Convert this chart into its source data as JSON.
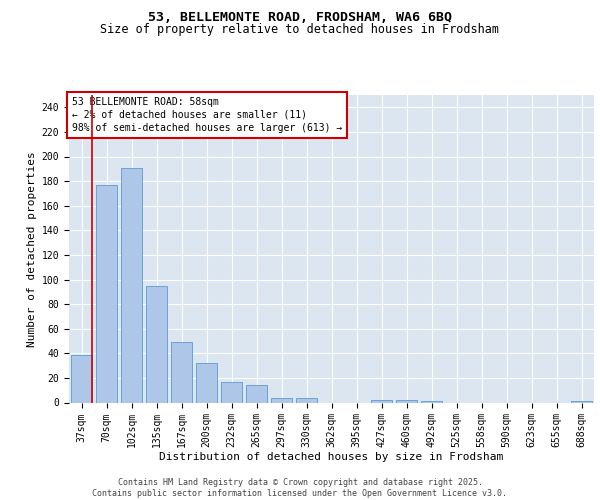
{
  "title1": "53, BELLEMONTE ROAD, FRODSHAM, WA6 6BQ",
  "title2": "Size of property relative to detached houses in Frodsham",
  "xlabel": "Distribution of detached houses by size in Frodsham",
  "ylabel": "Number of detached properties",
  "categories": [
    "37sqm",
    "70sqm",
    "102sqm",
    "135sqm",
    "167sqm",
    "200sqm",
    "232sqm",
    "265sqm",
    "297sqm",
    "330sqm",
    "362sqm",
    "395sqm",
    "427sqm",
    "460sqm",
    "492sqm",
    "525sqm",
    "558sqm",
    "590sqm",
    "623sqm",
    "655sqm",
    "688sqm"
  ],
  "values": [
    39,
    177,
    191,
    95,
    49,
    32,
    17,
    14,
    4,
    4,
    0,
    0,
    2,
    2,
    1,
    0,
    0,
    0,
    0,
    0,
    1
  ],
  "bar_color": "#aec6e8",
  "bar_edge_color": "#5b9bd5",
  "background_color": "#dce6f1",
  "grid_color": "#ffffff",
  "annotation_text": "53 BELLEMONTE ROAD: 58sqm\n← 2% of detached houses are smaller (11)\n98% of semi-detached houses are larger (613) →",
  "annotation_box_facecolor": "#ffffff",
  "annotation_box_edgecolor": "#cc0000",
  "vline_color": "#cc0000",
  "vline_x": 0.42,
  "ylim": [
    0,
    250
  ],
  "yticks": [
    0,
    20,
    40,
    60,
    80,
    100,
    120,
    140,
    160,
    180,
    200,
    220,
    240
  ],
  "footer_text": "Contains HM Land Registry data © Crown copyright and database right 2025.\nContains public sector information licensed under the Open Government Licence v3.0.",
  "title_fontsize": 9.5,
  "subtitle_fontsize": 8.5,
  "xlabel_fontsize": 8,
  "ylabel_fontsize": 8,
  "tick_fontsize": 7,
  "annotation_fontsize": 7,
  "footer_fontsize": 6
}
